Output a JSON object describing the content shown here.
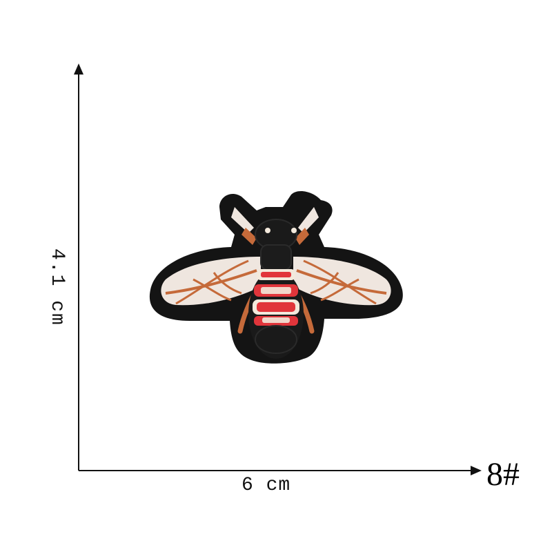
{
  "dimension_labels": {
    "height": "4.1 cm",
    "width": "6 cm"
  },
  "product_code": "8#",
  "colors": {
    "axis": "#111111",
    "patch_border": "#141414",
    "wing_fill": "#efe6df",
    "wing_vein": "#c56a3a",
    "stripe_red": "#e1353b",
    "stripe_cream": "#f3e9dc",
    "body_black": "#1a1a1a"
  },
  "icon_names": [
    "bee-patch-icon",
    "arrow-up-icon",
    "arrow-right-icon"
  ]
}
